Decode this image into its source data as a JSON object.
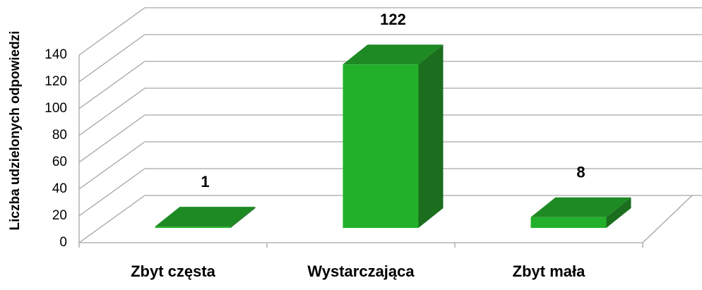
{
  "chart_data": {
    "type": "bar3d",
    "y_label": "Liczba udzielonych odpowiedzi",
    "categories": [
      "Zbyt częsta",
      "Wystarczająca",
      "Zbyt mała"
    ],
    "values": [
      1,
      122,
      8
    ],
    "color": "#22b02a",
    "ylim": [
      0,
      140
    ],
    "yticks": [
      0,
      20,
      40,
      60,
      80,
      100,
      120,
      140
    ],
    "grid": true
  }
}
